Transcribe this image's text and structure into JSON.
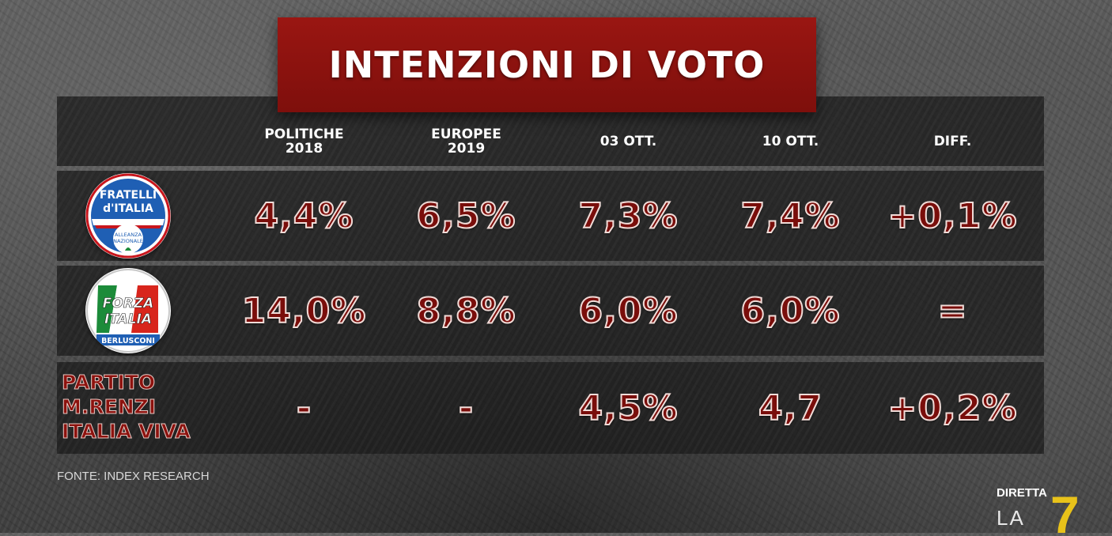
{
  "title": "INTENZIONI DI VOTO",
  "columns": [
    "",
    "POLITICHE\n2018",
    "EUROPEE\n2019",
    "03 OTT.",
    "10 OTT.",
    "DIFF."
  ],
  "rows": [
    {
      "party": "Fratelli d'Italia",
      "logo_icon": "fratelli-ditalia-logo",
      "logo_text": [
        "FRATELLI",
        "d'ITALIA",
        "ALLEANZA",
        "NAZIONALE"
      ],
      "values": [
        "4,4%",
        "6,5%",
        "7,3%",
        "7,4%",
        "+0,1%"
      ]
    },
    {
      "party": "Forza Italia",
      "logo_icon": "forza-italia-logo",
      "logo_text": [
        "FORZA",
        "ITALIA",
        "BERLUSCONI"
      ],
      "values": [
        "14,0%",
        "8,8%",
        "6,0%",
        "6,0%",
        "="
      ]
    },
    {
      "party_label": "PARTITO\nM.RENZI\nITALIA VIVA",
      "values": [
        "-",
        "-",
        "4,5%",
        "4,7",
        "+0,2%"
      ]
    }
  ],
  "source": "FONTE: INDEX RESEARCH",
  "channel": {
    "top": "DIRETTA",
    "bottom": "LA",
    "number": "7"
  },
  "colors": {
    "banner": "#8a1410",
    "value_text": "#7a0e0b",
    "row_bg": "#1c1c1c",
    "fdi_blue": "#1f5fb4",
    "fi_green": "#1c8b3a",
    "fi_red": "#d8251c",
    "la7_yellow": "#e8c21a"
  }
}
